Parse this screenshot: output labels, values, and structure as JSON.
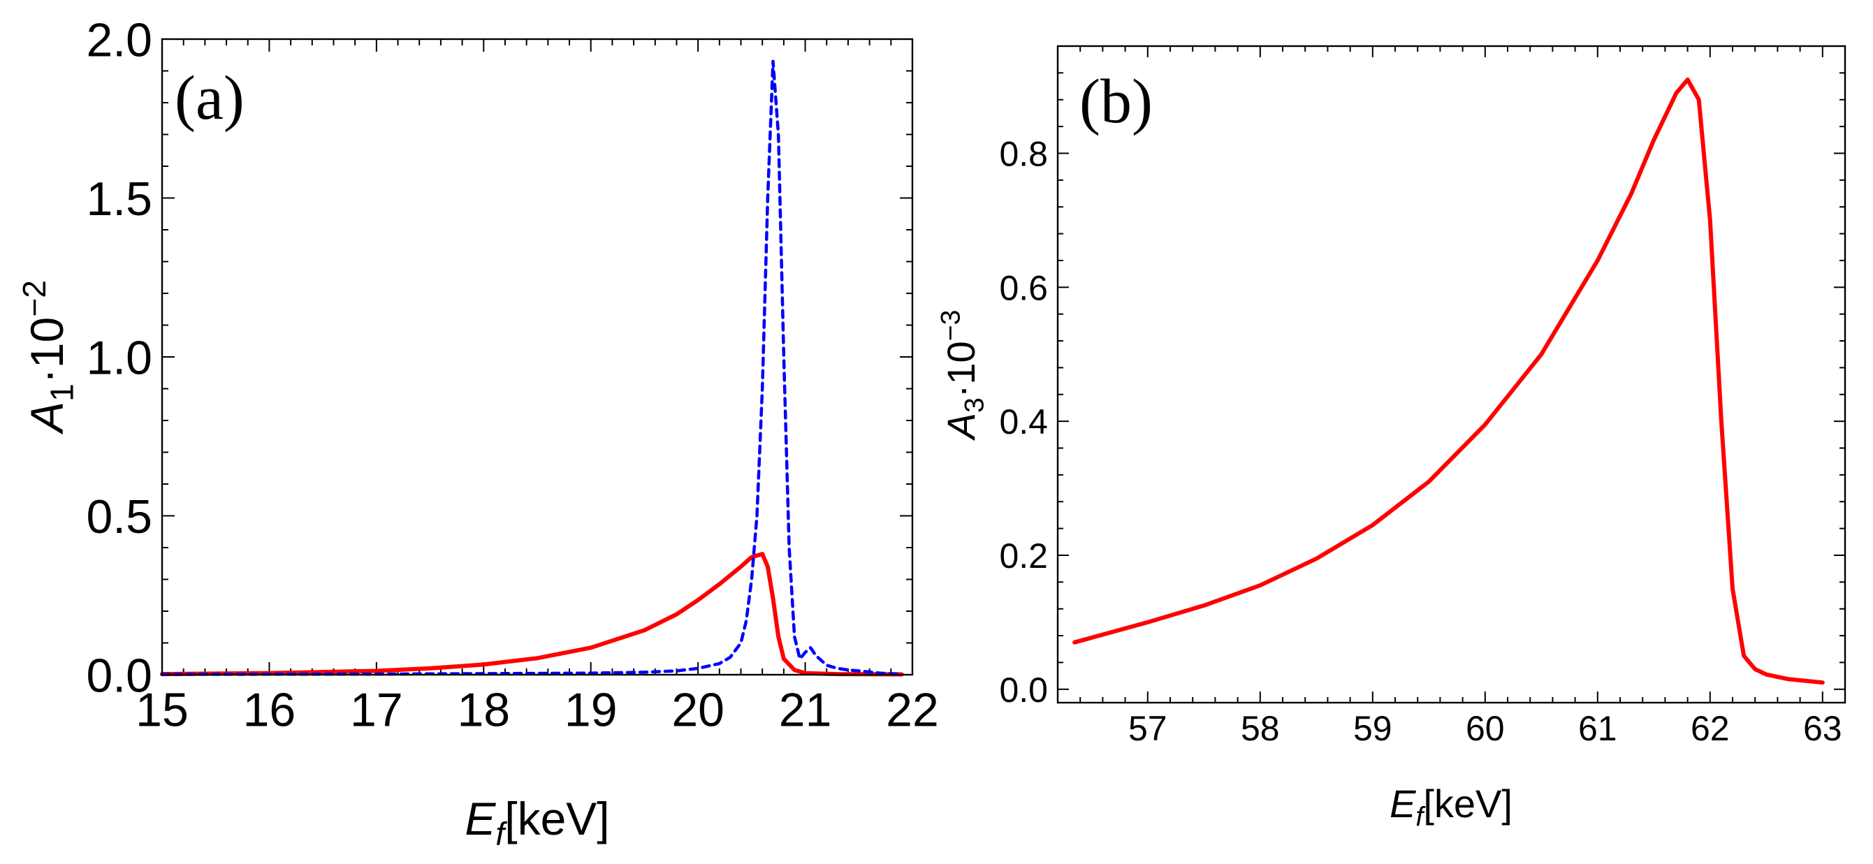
{
  "chart_data": [
    {
      "type": "line",
      "panel": "(a)",
      "xlabel_main": "E",
      "xlabel_sub": "f",
      "xlabel_unit": "[keV]",
      "ylabel_main": "A",
      "ylabel_sub": "1",
      "ylabel_factor": "·10",
      "ylabel_exp": "−2",
      "xlim": [
        15,
        22
      ],
      "ylim": [
        0,
        2
      ],
      "xticks": [
        15,
        16,
        17,
        18,
        19,
        20,
        21,
        22
      ],
      "xtick_labels": [
        "15",
        "16",
        "17",
        "18",
        "19",
        "20",
        "21",
        "22"
      ],
      "yticks": [
        0,
        0.5,
        1,
        1.5,
        2
      ],
      "ytick_labels": [
        "0.0",
        "0.5",
        "1.0",
        "1.5",
        "2.0"
      ],
      "series": [
        {
          "name": "solid",
          "color": "#ff0000",
          "style": "solid",
          "x": [
            15,
            16,
            17,
            17.5,
            18,
            18.5,
            19,
            19.5,
            19.8,
            20,
            20.2,
            20.4,
            20.5,
            20.6,
            20.65,
            20.7,
            20.75,
            20.8,
            20.9,
            21,
            21.3,
            21.9
          ],
          "y": [
            0.002,
            0.005,
            0.012,
            0.02,
            0.032,
            0.052,
            0.085,
            0.14,
            0.19,
            0.235,
            0.285,
            0.34,
            0.37,
            0.38,
            0.34,
            0.24,
            0.12,
            0.05,
            0.015,
            0.005,
            0.002,
            0.001
          ]
        },
        {
          "name": "dashed",
          "color": "#0000ff",
          "style": "dashed",
          "x": [
            15,
            17,
            19,
            19.5,
            19.8,
            20,
            20.2,
            20.3,
            20.4,
            20.45,
            20.5,
            20.55,
            20.6,
            20.65,
            20.7,
            20.75,
            20.8,
            20.85,
            20.9,
            20.95,
            21,
            21.05,
            21.1,
            21.2,
            21.3,
            21.4,
            21.5,
            21.7,
            21.9
          ],
          "y": [
            0.001,
            0.002,
            0.005,
            0.008,
            0.012,
            0.02,
            0.035,
            0.055,
            0.1,
            0.17,
            0.3,
            0.5,
            0.9,
            1.5,
            1.93,
            1.7,
            1.0,
            0.4,
            0.12,
            0.05,
            0.07,
            0.085,
            0.06,
            0.03,
            0.02,
            0.015,
            0.012,
            0.005,
            0.002
          ]
        }
      ]
    },
    {
      "type": "line",
      "panel": "(b)",
      "xlabel_main": "E",
      "xlabel_sub": "f",
      "xlabel_unit": "[keV]",
      "ylabel_main": "A",
      "ylabel_sub": "3",
      "ylabel_factor": "·10",
      "ylabel_exp": "−3",
      "xlim": [
        56.2,
        63.2
      ],
      "ylim": [
        -0.02,
        0.96
      ],
      "xticks": [
        57,
        58,
        59,
        60,
        61,
        62,
        63
      ],
      "xtick_labels": [
        "57",
        "58",
        "59",
        "60",
        "61",
        "62",
        "63"
      ],
      "yticks": [
        0,
        0.2,
        0.4,
        0.6,
        0.8
      ],
      "ytick_labels": [
        "0.0",
        "0.2",
        "0.4",
        "0.6",
        "0.8"
      ],
      "series": [
        {
          "name": "solid",
          "color": "#ff0000",
          "style": "solid",
          "x": [
            56.35,
            57,
            57.5,
            58,
            58.5,
            59,
            59.5,
            60,
            60.5,
            61,
            61.3,
            61.5,
            61.7,
            61.8,
            61.9,
            62,
            62.1,
            62.2,
            62.3,
            62.4,
            62.5,
            62.7,
            63
          ],
          "y": [
            0.07,
            0.1,
            0.125,
            0.155,
            0.195,
            0.245,
            0.31,
            0.395,
            0.5,
            0.64,
            0.74,
            0.82,
            0.89,
            0.91,
            0.88,
            0.7,
            0.4,
            0.15,
            0.05,
            0.03,
            0.022,
            0.015,
            0.01
          ]
        }
      ]
    }
  ]
}
